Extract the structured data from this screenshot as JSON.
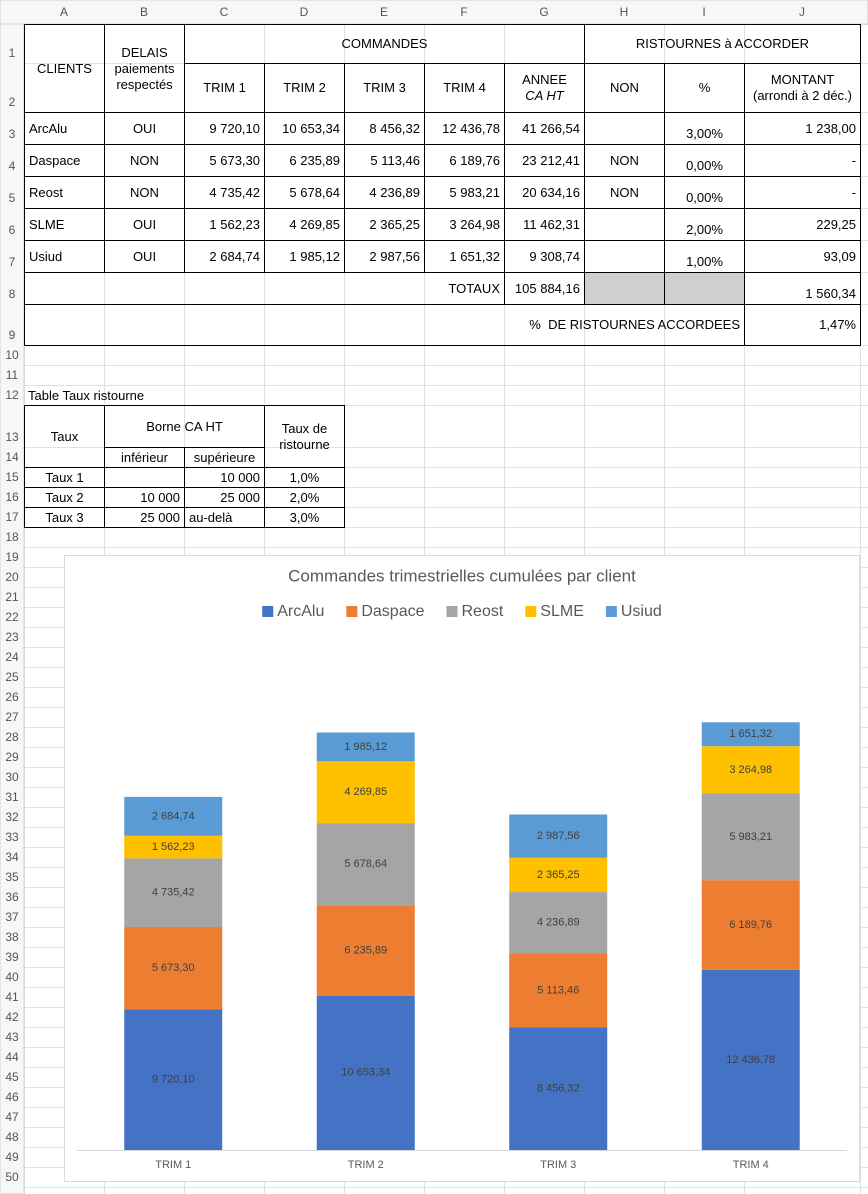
{
  "sheet": {
    "columns": [
      "A",
      "B",
      "C",
      "D",
      "E",
      "F",
      "G",
      "H",
      "I",
      "J"
    ],
    "rows": [
      "1",
      "2",
      "3",
      "4",
      "5",
      "6",
      "7",
      "8",
      "9",
      "10",
      "11",
      "12",
      "13",
      "14",
      "15",
      "16",
      "17",
      "18",
      "19",
      "20",
      "21",
      "22",
      "23",
      "24",
      "25",
      "26",
      "27",
      "28",
      "29",
      "30",
      "31",
      "32",
      "33",
      "34",
      "35",
      "36",
      "37",
      "38",
      "39",
      "40",
      "41",
      "42",
      "43",
      "44",
      "45",
      "46",
      "47",
      "48",
      "49",
      "50"
    ]
  },
  "main_table": {
    "header": {
      "clients": "CLIENTS",
      "delais": "DELAIS paiements respectés",
      "commandes": "COMMANDES",
      "ristournes": "RISTOURNES à ACCORDER",
      "trims": [
        "TRIM 1",
        "TRIM 2",
        "TRIM 3",
        "TRIM 4"
      ],
      "annee": "ANNEE",
      "annee_sub": "CA HT",
      "non": "NON",
      "pct": "%",
      "montant": "MONTANT",
      "montant_sub": "(arrondi à 2 déc.)"
    },
    "rows": [
      {
        "client": "ArcAlu",
        "delais": "OUI",
        "trims": [
          "9 720,10",
          "10 653,34",
          "8 456,32",
          "12 436,78"
        ],
        "annee": "41 266,54",
        "pct": "3,00%",
        "montant": "1 238,00"
      },
      {
        "client": "Daspace",
        "delais": "NON",
        "trims": [
          "5 673,30",
          "6 235,89",
          "5 113,46",
          "6 189,76"
        ],
        "annee": "23 212,41",
        "non": "NON",
        "pct": "0,00%",
        "montant": "-"
      },
      {
        "client": "Reost",
        "delais": "NON",
        "trims": [
          "4 735,42",
          "5 678,64",
          "4 236,89",
          "5 983,21"
        ],
        "annee": "20 634,16",
        "non": "NON",
        "pct": "0,00%",
        "montant": "-"
      },
      {
        "client": "SLME",
        "delais": "OUI",
        "trims": [
          "1 562,23",
          "4 269,85",
          "2 365,25",
          "3 264,98"
        ],
        "annee": "11 462,31",
        "pct": "2,00%",
        "montant": "229,25"
      },
      {
        "client": "Usiud",
        "delais": "OUI",
        "trims": [
          "2 684,74",
          "1 985,12",
          "2 987,56",
          "1 651,32"
        ],
        "annee": "9 308,74",
        "pct": "1,00%",
        "montant": "93,09"
      }
    ],
    "totals_label": "TOTAUX",
    "total_annee": "105 884,16",
    "total_montant": "1 560,34",
    "pct_label": "%  DE RISTOURNES ACCORDEES",
    "pct_value": "1,47%"
  },
  "rate_table": {
    "title": "Table Taux ristourne",
    "taux": "Taux",
    "borne": "Borne CA HT",
    "taux_ristourne": "Taux de ristourne",
    "inferieur": "inférieur",
    "superieur": "supérieure",
    "rows": [
      {
        "name": "Taux 1",
        "sup": "10 000",
        "rate": "1,0%"
      },
      {
        "name": "Taux 2",
        "inf": "10 000",
        "sup": "25 000",
        "rate": "2,0%"
      },
      {
        "name": "Taux 3",
        "inf": "25 000",
        "sup": "au-delà",
        "rate": "3,0%"
      }
    ]
  },
  "chart_data": {
    "type": "stacked_bar",
    "title": "Commandes trimestrielles cumulées par client",
    "categories": [
      "TRIM 1",
      "TRIM 2",
      "TRIM 3",
      "TRIM 4"
    ],
    "ylim": [
      0,
      35000
    ],
    "series": [
      {
        "name": "ArcAlu",
        "color": "#4472c4",
        "values": [
          9720.1,
          10653.34,
          8456.32,
          12436.78
        ],
        "value_labels": [
          "9 720,10",
          "10 653,34",
          "8 456,32",
          "12 436,78"
        ]
      },
      {
        "name": "Daspace",
        "color": "#ed7d31",
        "values": [
          5673.3,
          6235.89,
          5113.46,
          6189.76
        ],
        "value_labels": [
          "5 673,30",
          "6 235,89",
          "5 113,46",
          "6 189,76"
        ]
      },
      {
        "name": "Reost",
        "color": "#a5a5a5",
        "values": [
          4735.42,
          5678.64,
          4236.89,
          5983.21
        ],
        "value_labels": [
          "4 735,42",
          "5 678,64",
          "4 236,89",
          "5 983,21"
        ]
      },
      {
        "name": "SLME",
        "color": "#ffc000",
        "values": [
          1562.23,
          4269.85,
          2365.25,
          3264.98
        ],
        "value_labels": [
          "1 562,23",
          "4 269,85",
          "2 365,25",
          "3 264,98"
        ]
      },
      {
        "name": "Usiud",
        "color": "#5b9bd5",
        "values": [
          2684.74,
          1985.12,
          2987.56,
          1651.32
        ],
        "value_labels": [
          "2 684,74",
          "1 985,12",
          "2 987,56",
          "1 651,32"
        ]
      }
    ],
    "legend": "top"
  }
}
